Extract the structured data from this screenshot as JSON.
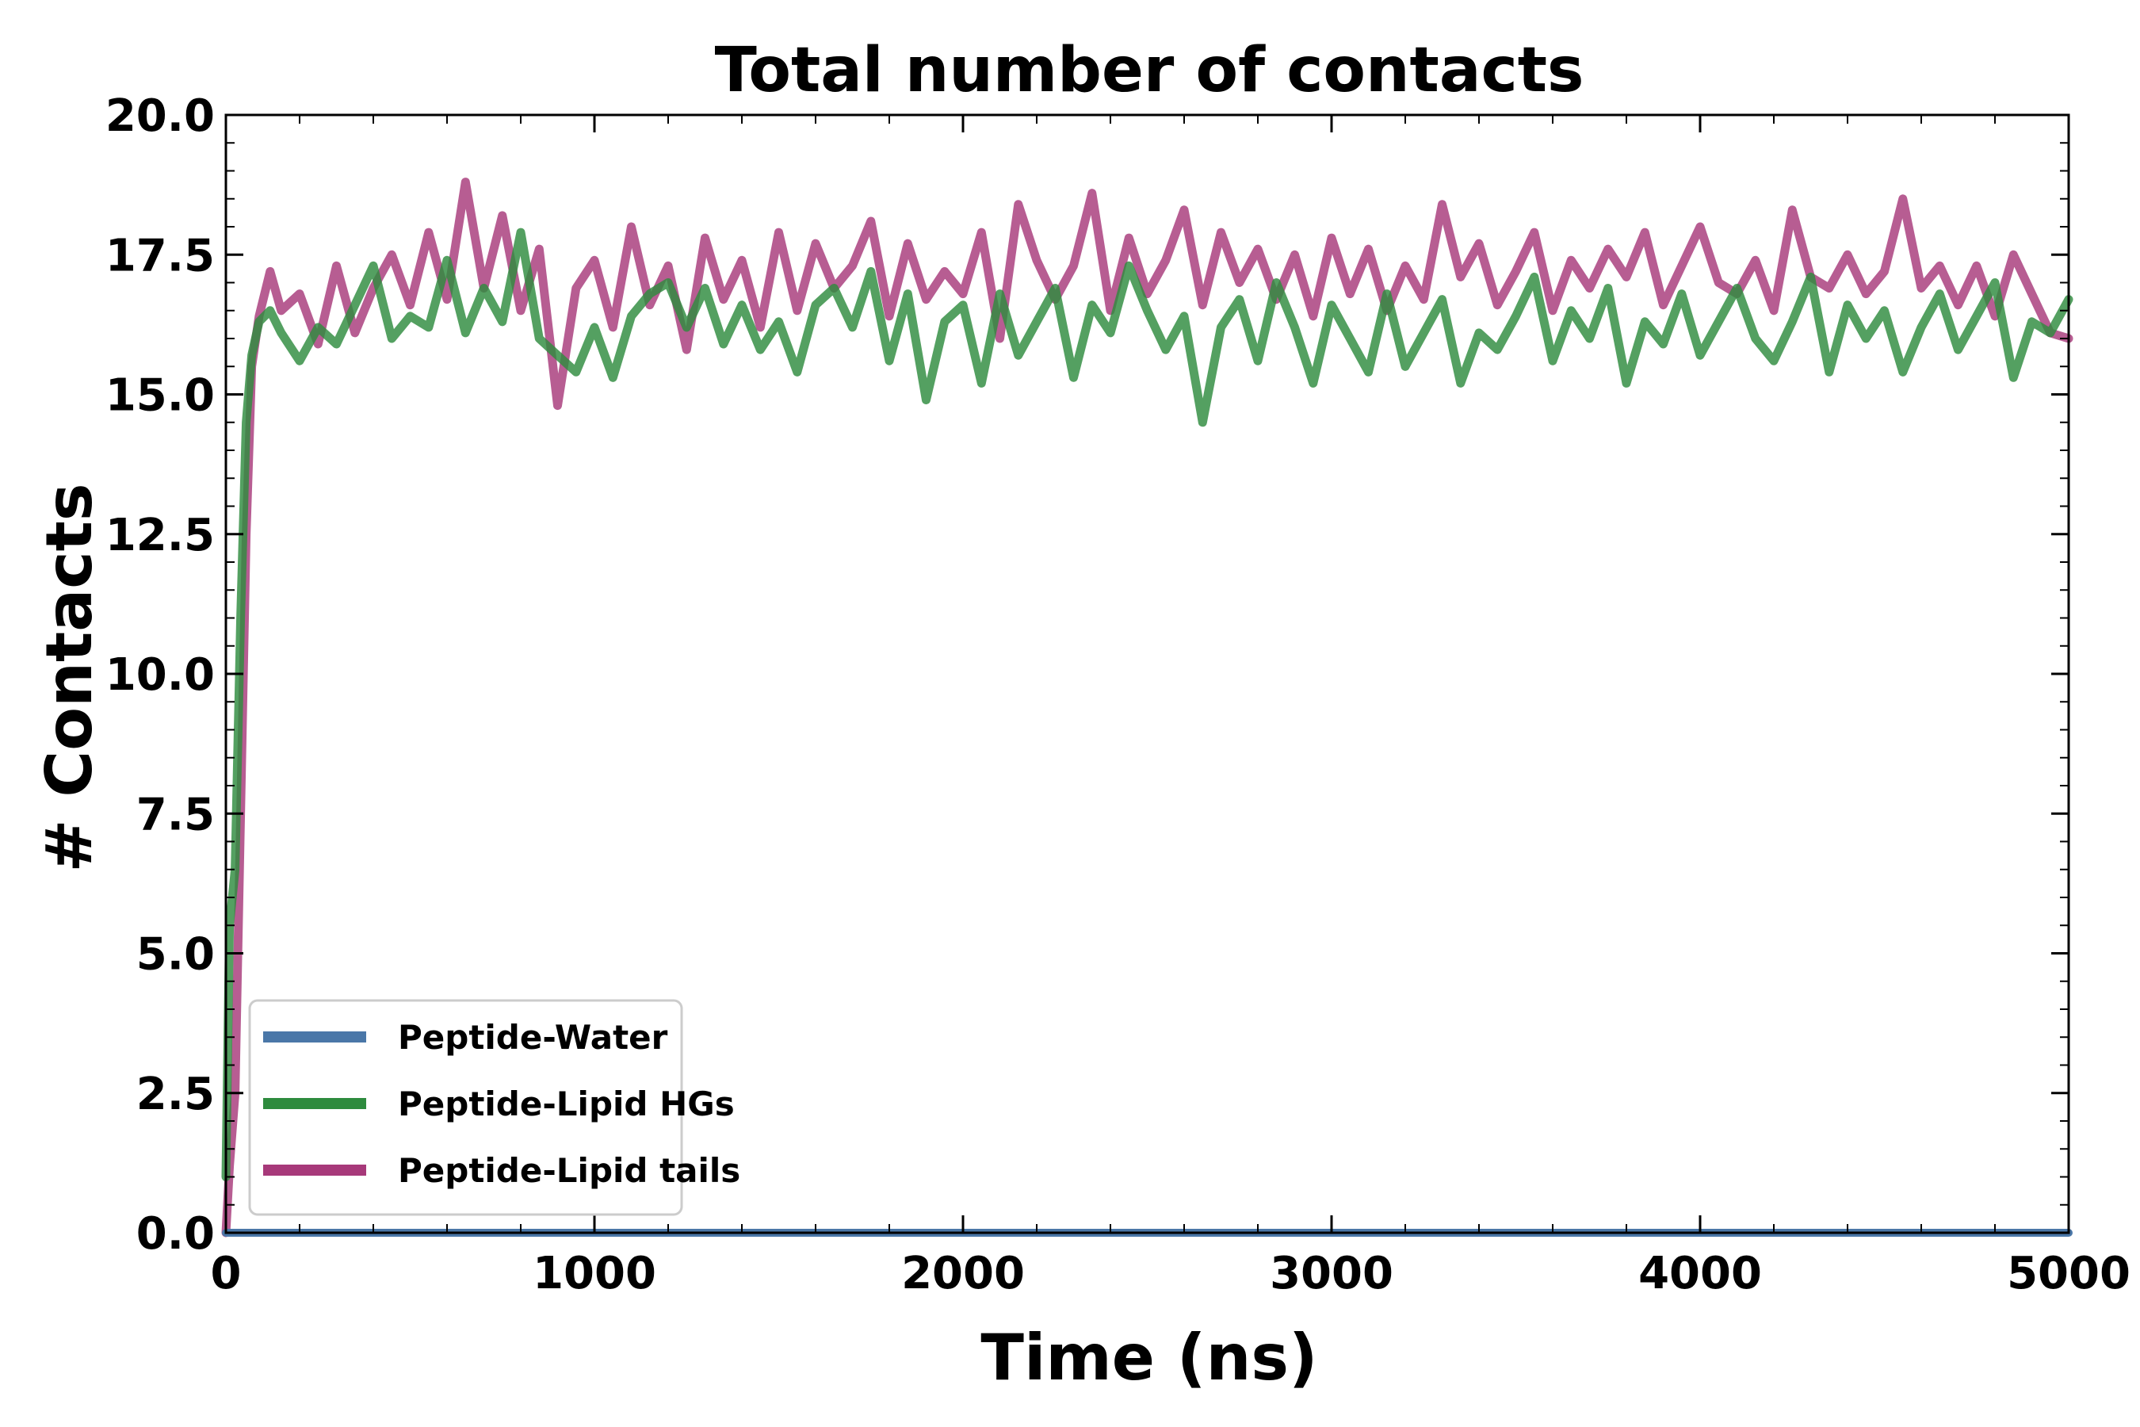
{
  "chart_data": {
    "type": "line",
    "title": "Total number of contacts",
    "xlabel": "Time (ns)",
    "ylabel": "# Contacts",
    "xlim": [
      0,
      5000
    ],
    "ylim": [
      0.0,
      20.0
    ],
    "xticks": [
      0,
      1000,
      2000,
      3000,
      4000,
      5000
    ],
    "xtick_labels": [
      "0",
      "1000",
      "2000",
      "3000",
      "4000",
      "5000"
    ],
    "yticks": [
      0.0,
      2.5,
      5.0,
      7.5,
      10.0,
      12.5,
      15.0,
      17.5,
      20.0
    ],
    "ytick_labels": [
      "0.0",
      "2.5",
      "5.0",
      "7.5",
      "10.0",
      "12.5",
      "15.0",
      "17.5",
      "20.0"
    ],
    "grid": false,
    "legend_position": "lower-left",
    "series": [
      {
        "name": "Peptide-Water",
        "color": "#4a77a8",
        "x": [
          0,
          5000
        ],
        "y": [
          0.0,
          0.0
        ]
      },
      {
        "name": "Peptide-Lipid HGs",
        "color": "#2e8b3e",
        "x": [
          0,
          10,
          25,
          40,
          55,
          70,
          90,
          120,
          150,
          200,
          250,
          300,
          350,
          400,
          450,
          500,
          550,
          600,
          650,
          700,
          750,
          800,
          850,
          900,
          950,
          1000,
          1050,
          1100,
          1150,
          1200,
          1250,
          1300,
          1350,
          1400,
          1450,
          1500,
          1550,
          1600,
          1650,
          1700,
          1750,
          1800,
          1850,
          1900,
          1950,
          2000,
          2050,
          2100,
          2150,
          2200,
          2250,
          2300,
          2350,
          2400,
          2450,
          2500,
          2550,
          2600,
          2650,
          2700,
          2750,
          2800,
          2850,
          2900,
          2950,
          3000,
          3050,
          3100,
          3150,
          3200,
          3250,
          3300,
          3350,
          3400,
          3450,
          3500,
          3550,
          3600,
          3650,
          3700,
          3750,
          3800,
          3850,
          3900,
          3950,
          4000,
          4050,
          4100,
          4150,
          4200,
          4250,
          4300,
          4350,
          4400,
          4450,
          4500,
          4550,
          4600,
          4650,
          4700,
          4750,
          4800,
          4850,
          4900,
          4950,
          5000
        ],
        "y": [
          1.0,
          5.5,
          6.5,
          11.0,
          14.5,
          15.7,
          16.3,
          16.5,
          16.1,
          15.6,
          16.2,
          15.9,
          16.6,
          17.3,
          16.0,
          16.4,
          16.2,
          17.4,
          16.1,
          16.9,
          16.3,
          17.9,
          16.0,
          15.7,
          15.4,
          16.2,
          15.3,
          16.4,
          16.8,
          17.0,
          16.2,
          16.9,
          15.9,
          16.6,
          15.8,
          16.3,
          15.4,
          16.6,
          16.9,
          16.2,
          17.2,
          15.6,
          16.8,
          14.9,
          16.3,
          16.6,
          15.2,
          16.8,
          15.7,
          16.3,
          16.9,
          15.3,
          16.6,
          16.1,
          17.3,
          16.5,
          15.8,
          16.4,
          14.5,
          16.2,
          16.7,
          15.6,
          17.0,
          16.2,
          15.2,
          16.6,
          16.0,
          15.4,
          16.8,
          15.5,
          16.1,
          16.7,
          15.2,
          16.1,
          15.8,
          16.4,
          17.1,
          15.6,
          16.5,
          16.0,
          16.9,
          15.2,
          16.3,
          15.9,
          16.8,
          15.7,
          16.3,
          16.9,
          16.0,
          15.6,
          16.3,
          17.1,
          15.4,
          16.6,
          16.0,
          16.5,
          15.4,
          16.2,
          16.8,
          15.8,
          16.4,
          17.0,
          15.3,
          16.3,
          16.1,
          16.7
        ]
      },
      {
        "name": "Peptide-Lipid tails",
        "color": "#a7397a",
        "x": [
          0,
          10,
          25,
          40,
          55,
          70,
          90,
          120,
          150,
          200,
          250,
          300,
          350,
          400,
          450,
          500,
          550,
          600,
          650,
          700,
          750,
          800,
          850,
          900,
          950,
          1000,
          1050,
          1100,
          1150,
          1200,
          1250,
          1300,
          1350,
          1400,
          1450,
          1500,
          1550,
          1600,
          1650,
          1700,
          1750,
          1800,
          1850,
          1900,
          1950,
          2000,
          2050,
          2100,
          2150,
          2200,
          2250,
          2300,
          2350,
          2400,
          2450,
          2500,
          2550,
          2600,
          2650,
          2700,
          2750,
          2800,
          2850,
          2900,
          2950,
          3000,
          3050,
          3100,
          3150,
          3200,
          3250,
          3300,
          3350,
          3400,
          3450,
          3500,
          3550,
          3600,
          3650,
          3700,
          3750,
          3800,
          3850,
          3900,
          3950,
          4000,
          4050,
          4100,
          4150,
          4200,
          4250,
          4300,
          4350,
          4400,
          4450,
          4500,
          4550,
          4600,
          4650,
          4700,
          4750,
          4800,
          4850,
          4900,
          4950,
          5000
        ],
        "y": [
          0.0,
          1.2,
          2.5,
          7.5,
          12.5,
          15.5,
          16.4,
          17.2,
          16.5,
          16.8,
          15.9,
          17.3,
          16.1,
          16.9,
          17.5,
          16.6,
          17.9,
          16.7,
          18.8,
          16.9,
          18.2,
          16.5,
          17.6,
          14.8,
          16.9,
          17.4,
          16.2,
          18.0,
          16.6,
          17.3,
          15.8,
          17.8,
          16.7,
          17.4,
          16.2,
          17.9,
          16.5,
          17.7,
          16.9,
          17.3,
          18.1,
          16.4,
          17.7,
          16.7,
          17.2,
          16.8,
          17.9,
          16.0,
          18.4,
          17.4,
          16.7,
          17.3,
          18.6,
          16.5,
          17.8,
          16.8,
          17.4,
          18.3,
          16.6,
          17.9,
          17.0,
          17.6,
          16.7,
          17.5,
          16.4,
          17.8,
          16.8,
          17.6,
          16.5,
          17.3,
          16.7,
          18.4,
          17.1,
          17.7,
          16.6,
          17.2,
          17.9,
          16.5,
          17.4,
          16.9,
          17.6,
          17.1,
          17.9,
          16.6,
          17.3,
          18.0,
          17.0,
          16.8,
          17.4,
          16.5,
          18.3,
          17.1,
          16.9,
          17.5,
          16.8,
          17.2,
          18.5,
          16.9,
          17.3,
          16.6,
          17.3,
          16.4,
          17.5,
          16.8,
          16.1,
          16.0
        ]
      }
    ]
  }
}
